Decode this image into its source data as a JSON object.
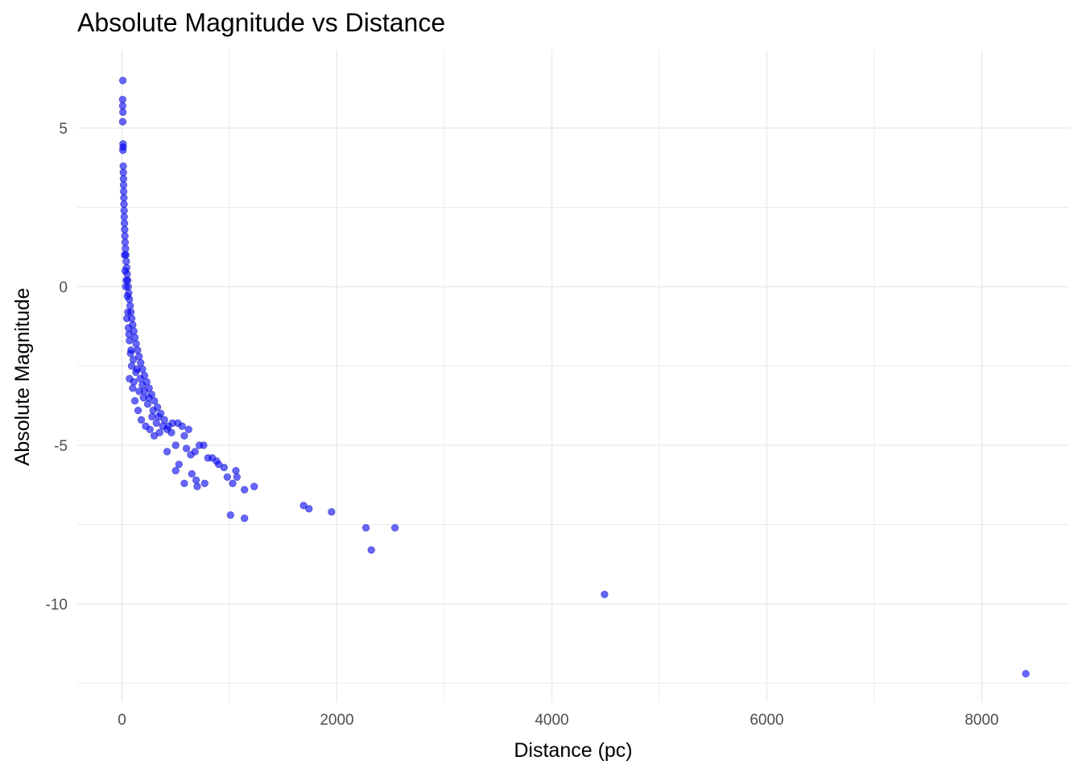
{
  "chart_data": {
    "type": "scatter",
    "title": "Absolute Magnitude vs Distance",
    "xlabel": "Distance (pc)",
    "ylabel": "Absolute Magnitude",
    "xlim": [
      -400,
      8800
    ],
    "ylim": [
      -12.5,
      6.8
    ],
    "x_ticks": [
      0,
      2000,
      4000,
      6000,
      8000
    ],
    "x_tick_labels": [
      "0",
      "2000",
      "4000",
      "6000",
      "8000"
    ],
    "y_ticks": [
      5,
      0,
      -5,
      -10
    ],
    "y_tick_labels": [
      "5",
      "0",
      "-5",
      "-10"
    ],
    "grid": true,
    "point_color": "#0000ff",
    "series": [
      {
        "points": [
          [
            8,
            6.5
          ],
          [
            6,
            5.9
          ],
          [
            7,
            5.7
          ],
          [
            9,
            5.5
          ],
          [
            7,
            5.2
          ],
          [
            10,
            4.5
          ],
          [
            11,
            4.4
          ],
          [
            9,
            4.3
          ],
          [
            12,
            3.8
          ],
          [
            13,
            3.6
          ],
          [
            14,
            3.4
          ],
          [
            15,
            3.2
          ],
          [
            16,
            3.0
          ],
          [
            18,
            2.8
          ],
          [
            19,
            2.6
          ],
          [
            20,
            2.4
          ],
          [
            21,
            2.2
          ],
          [
            23,
            2.0
          ],
          [
            25,
            1.8
          ],
          [
            27,
            1.6
          ],
          [
            30,
            1.4
          ],
          [
            33,
            1.2
          ],
          [
            36,
            1.0
          ],
          [
            40,
            0.8
          ],
          [
            44,
            0.6
          ],
          [
            48,
            0.4
          ],
          [
            53,
            0.2
          ],
          [
            58,
            0.0
          ],
          [
            63,
            -0.2
          ],
          [
            69,
            -0.4
          ],
          [
            76,
            -0.6
          ],
          [
            83,
            -0.8
          ],
          [
            91,
            -1.0
          ],
          [
            100,
            -1.2
          ],
          [
            110,
            -1.4
          ],
          [
            120,
            -1.6
          ],
          [
            132,
            -1.8
          ],
          [
            145,
            -2.0
          ],
          [
            159,
            -2.2
          ],
          [
            174,
            -2.4
          ],
          [
            191,
            -2.6
          ],
          [
            210,
            -2.8
          ],
          [
            230,
            -3.0
          ],
          [
            252,
            -3.2
          ],
          [
            276,
            -3.4
          ],
          [
            302,
            -3.6
          ],
          [
            330,
            -3.8
          ],
          [
            361,
            -4.0
          ],
          [
            395,
            -4.2
          ],
          [
            432,
            -4.4
          ],
          [
            30,
            0.5
          ],
          [
            40,
            0.2
          ],
          [
            50,
            -0.3
          ],
          [
            55,
            -0.8
          ],
          [
            60,
            -1.3
          ],
          [
            70,
            -1.7
          ],
          [
            80,
            -2.1
          ],
          [
            90,
            -2.5
          ],
          [
            70,
            -2.9
          ],
          [
            100,
            -3.2
          ],
          [
            120,
            -3.6
          ],
          [
            150,
            -3.9
          ],
          [
            180,
            -4.2
          ],
          [
            220,
            -4.4
          ],
          [
            260,
            -4.5
          ],
          [
            300,
            -4.7
          ],
          [
            110,
            -3.0
          ],
          [
            130,
            -2.7
          ],
          [
            160,
            -3.3
          ],
          [
            200,
            -3.5
          ],
          [
            240,
            -3.7
          ],
          [
            280,
            -4.1
          ],
          [
            320,
            -4.3
          ],
          [
            350,
            -4.6
          ],
          [
            25,
            1.0
          ],
          [
            35,
            0.0
          ],
          [
            45,
            -1.0
          ],
          [
            65,
            -1.5
          ],
          [
            85,
            -2.0
          ],
          [
            105,
            -2.3
          ],
          [
            140,
            -2.6
          ],
          [
            170,
            -2.9
          ],
          [
            190,
            -3.1
          ],
          [
            210,
            -3.3
          ],
          [
            250,
            -3.5
          ],
          [
            290,
            -3.9
          ],
          [
            340,
            -4.1
          ],
          [
            380,
            -4.4
          ],
          [
            420,
            -4.5
          ],
          [
            460,
            -4.6
          ],
          [
            470,
            -4.3
          ],
          [
            500,
            -5.0
          ],
          [
            520,
            -4.3
          ],
          [
            560,
            -4.4
          ],
          [
            580,
            -4.7
          ],
          [
            600,
            -5.1
          ],
          [
            620,
            -4.5
          ],
          [
            640,
            -5.3
          ],
          [
            680,
            -5.2
          ],
          [
            720,
            -5.0
          ],
          [
            760,
            -5.0
          ],
          [
            800,
            -5.4
          ],
          [
            840,
            -5.4
          ],
          [
            880,
            -5.5
          ],
          [
            900,
            -5.6
          ],
          [
            950,
            -5.7
          ],
          [
            420,
            -5.2
          ],
          [
            500,
            -5.8
          ],
          [
            530,
            -5.6
          ],
          [
            580,
            -6.2
          ],
          [
            650,
            -5.9
          ],
          [
            700,
            -6.3
          ],
          [
            690,
            -6.1
          ],
          [
            770,
            -6.2
          ],
          [
            980,
            -6.0
          ],
          [
            1030,
            -6.2
          ],
          [
            1060,
            -5.8
          ],
          [
            1070,
            -6.0
          ],
          [
            1140,
            -6.4
          ],
          [
            1230,
            -6.3
          ],
          [
            1010,
            -7.2
          ],
          [
            1140,
            -7.3
          ],
          [
            1690,
            -6.9
          ],
          [
            1740,
            -7.0
          ],
          [
            1950,
            -7.1
          ],
          [
            2270,
            -7.6
          ],
          [
            2540,
            -7.6
          ],
          [
            2320,
            -8.3
          ],
          [
            4490,
            -9.7
          ],
          [
            8410,
            -12.2
          ]
        ]
      }
    ]
  }
}
